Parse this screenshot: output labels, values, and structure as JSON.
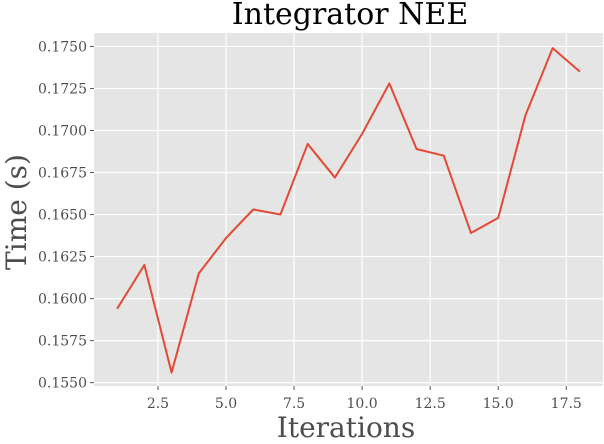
{
  "chart_data": {
    "type": "line",
    "title": "Integrator NEE",
    "xlabel": "Iterations",
    "ylabel": "Time (s)",
    "xlim": [
      0.15,
      18.85
    ],
    "ylim": [
      0.1548,
      0.1758
    ],
    "xticks": [
      2.5,
      5.0,
      7.5,
      10.0,
      12.5,
      15.0,
      17.5
    ],
    "xtick_labels": [
      "2.5",
      "5.0",
      "7.5",
      "10.0",
      "12.5",
      "15.0",
      "17.5"
    ],
    "yticks": [
      0.155,
      0.1575,
      0.16,
      0.1625,
      0.165,
      0.1675,
      0.17,
      0.1725,
      0.175
    ],
    "ytick_labels": [
      "0.1550",
      "0.1575",
      "0.1600",
      "0.1625",
      "0.1650",
      "0.1675",
      "0.1700",
      "0.1725",
      "0.1750"
    ],
    "grid": true,
    "background_color": "#e5e5e5",
    "line_color": "#e24a33",
    "x": [
      1,
      2,
      3,
      4,
      5,
      6,
      7,
      8,
      9,
      10,
      11,
      12,
      13,
      14,
      15,
      16,
      17,
      18
    ],
    "y": [
      0.1594,
      0.162,
      0.1556,
      0.1615,
      0.1636,
      0.1653,
      0.165,
      0.1692,
      0.1672,
      0.1698,
      0.1728,
      0.1689,
      0.1685,
      0.1639,
      0.1648,
      0.1709,
      0.1749,
      0.1735
    ]
  }
}
